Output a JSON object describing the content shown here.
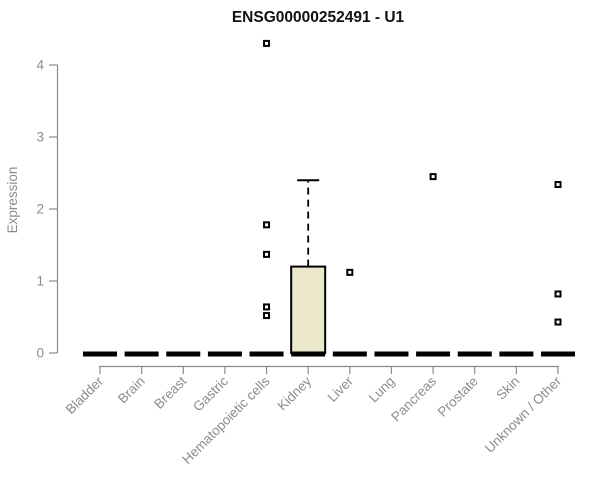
{
  "chart_data": {
    "type": "boxplot",
    "title": "ENSG00000252491 - U1",
    "ylabel": "Expression",
    "xlabel": "",
    "ylim": [
      0,
      4
    ],
    "yticks": [
      0,
      1,
      2,
      3,
      4
    ],
    "grid": false,
    "legend_position": "none",
    "colors": {
      "box_fill": "#ece8cc",
      "box_stroke": "#000000",
      "median": "#000000",
      "whisker": "#000000",
      "outlier_stroke": "#000000",
      "outlier_fill": "#ffffff",
      "axis": "#8c8c8c",
      "title_text": "#111111",
      "background": "#ffffff"
    },
    "categories": [
      "Bladder",
      "Brain",
      "Breast",
      "Gastric",
      "Hematopoietic cells",
      "Kidney",
      "Liver",
      "Lung",
      "Pancreas",
      "Prostate",
      "Skin",
      "Unknown / Other"
    ],
    "boxes": [
      {
        "category": "Bladder",
        "q1": 0,
        "median": 0,
        "q3": 0,
        "whisker_low": 0,
        "whisker_high": 0,
        "outliers": []
      },
      {
        "category": "Brain",
        "q1": 0,
        "median": 0,
        "q3": 0,
        "whisker_low": 0,
        "whisker_high": 0,
        "outliers": []
      },
      {
        "category": "Breast",
        "q1": 0,
        "median": 0,
        "q3": 0,
        "whisker_low": 0,
        "whisker_high": 0,
        "outliers": []
      },
      {
        "category": "Gastric",
        "q1": 0,
        "median": 0,
        "q3": 0,
        "whisker_low": 0,
        "whisker_high": 0,
        "outliers": []
      },
      {
        "category": "Hematopoietic cells",
        "q1": 0,
        "median": 0,
        "q3": 0,
        "whisker_low": 0,
        "whisker_high": 0,
        "outliers": [
          4.3,
          1.78,
          1.37,
          0.64,
          0.52
        ]
      },
      {
        "category": "Kidney",
        "q1": 0,
        "median": 0,
        "q3": 1.2,
        "whisker_low": 0,
        "whisker_high": 2.4,
        "outliers": []
      },
      {
        "category": "Liver",
        "q1": 0,
        "median": 0,
        "q3": 0,
        "whisker_low": 0,
        "whisker_high": 0,
        "outliers": [
          1.12
        ]
      },
      {
        "category": "Lung",
        "q1": 0,
        "median": 0,
        "q3": 0,
        "whisker_low": 0,
        "whisker_high": 0,
        "outliers": []
      },
      {
        "category": "Pancreas",
        "q1": 0,
        "median": 0,
        "q3": 0,
        "whisker_low": 0,
        "whisker_high": 0,
        "outliers": [
          2.45
        ]
      },
      {
        "category": "Prostate",
        "q1": 0,
        "median": 0,
        "q3": 0,
        "whisker_low": 0,
        "whisker_high": 0,
        "outliers": []
      },
      {
        "category": "Skin",
        "q1": 0,
        "median": 0,
        "q3": 0,
        "whisker_low": 0,
        "whisker_high": 0,
        "outliers": []
      },
      {
        "category": "Unknown / Other",
        "q1": 0,
        "median": 0,
        "q3": 0,
        "whisker_low": 0,
        "whisker_high": 0,
        "outliers": [
          2.34,
          0.82,
          0.43
        ]
      }
    ]
  }
}
